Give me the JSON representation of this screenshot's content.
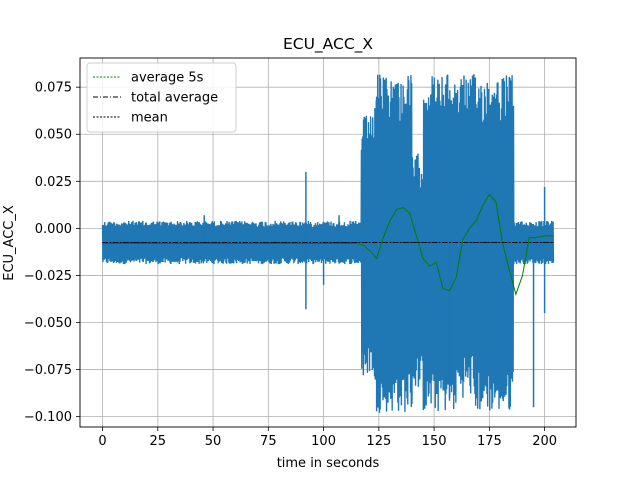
{
  "chart_data": {
    "type": "line",
    "title": "ECU_ACC_X",
    "xlabel": "time in seconds",
    "ylabel": "ECU_ACC_X",
    "xlim": [
      -10.2,
      214.2
    ],
    "ylim": [
      -0.1055,
      0.0905
    ],
    "xticks": [
      0,
      25,
      50,
      75,
      100,
      125,
      150,
      175,
      200
    ],
    "yticks": [
      -0.1,
      -0.075,
      -0.05,
      -0.025,
      0.0,
      0.025,
      0.05,
      0.075
    ],
    "ytick_labels": [
      "−0.100",
      "−0.075",
      "−0.050",
      "−0.025",
      "0.000",
      "0.025",
      "0.050",
      "0.075"
    ],
    "grid": true,
    "legend_position": "upper-left",
    "legend": [
      "average 5s",
      "total average",
      "mean"
    ],
    "colors": {
      "signal": "#1f77b4",
      "average_5s": "#008000",
      "total_average": "#000000",
      "mean": "#000000"
    },
    "signal": {
      "description": "raw acceleration signal, sampled densely, shown as envelope ranges",
      "x_range": [
        0,
        204
      ],
      "segments": [
        {
          "x": [
            0,
            117
          ],
          "min": -0.019,
          "max": 0.004
        },
        {
          "x": [
            117,
            123
          ],
          "min": -0.078,
          "max": 0.06
        },
        {
          "x": [
            123,
            140
          ],
          "min": -0.098,
          "max": 0.082
        },
        {
          "x": [
            140,
            145
          ],
          "min": -0.085,
          "max": 0.04
        },
        {
          "x": [
            145,
            160
          ],
          "min": -0.098,
          "max": 0.082
        },
        {
          "x": [
            160,
            168
          ],
          "min": -0.09,
          "max": 0.082
        },
        {
          "x": [
            168,
            186
          ],
          "min": -0.098,
          "max": 0.082
        },
        {
          "x": [
            186,
            204
          ],
          "min": -0.019,
          "max": 0.004
        }
      ],
      "spikes": [
        {
          "x": 46,
          "y": 0.007
        },
        {
          "x": 92,
          "y": 0.03
        },
        {
          "x": 92,
          "y": -0.043
        },
        {
          "x": 100,
          "y": -0.03
        },
        {
          "x": 107,
          "y": 0.007
        },
        {
          "x": 118,
          "y": -0.078
        },
        {
          "x": 124,
          "y": 0.07
        },
        {
          "x": 157,
          "y": -0.09
        },
        {
          "x": 183,
          "y": 0.055
        },
        {
          "x": 195,
          "y": -0.095
        },
        {
          "x": 200,
          "y": 0.022
        },
        {
          "x": 200,
          "y": -0.045
        }
      ]
    },
    "series": [
      {
        "name": "average 5s",
        "x": [
          0,
          115,
          118,
          121,
          124,
          127,
          130,
          133,
          136,
          139,
          142,
          145,
          148,
          151,
          154,
          157,
          160,
          163,
          166,
          169,
          172,
          175,
          178,
          181,
          184,
          187,
          190,
          193,
          196,
          200,
          204
        ],
        "y": [
          -0.008,
          -0.008,
          -0.009,
          -0.012,
          -0.016,
          -0.005,
          0.004,
          0.01,
          0.011,
          0.008,
          -0.004,
          -0.016,
          -0.02,
          -0.018,
          -0.032,
          -0.033,
          -0.026,
          -0.006,
          0.0,
          0.004,
          0.012,
          0.018,
          0.014,
          -0.008,
          -0.022,
          -0.035,
          -0.025,
          -0.005,
          -0.005,
          -0.004,
          -0.004
        ]
      },
      {
        "name": "total average",
        "x": [
          0,
          204
        ],
        "y": [
          -0.0075,
          -0.0075
        ]
      },
      {
        "name": "mean",
        "x": [
          0,
          204
        ],
        "y": [
          -0.0075,
          -0.0075
        ]
      }
    ]
  }
}
